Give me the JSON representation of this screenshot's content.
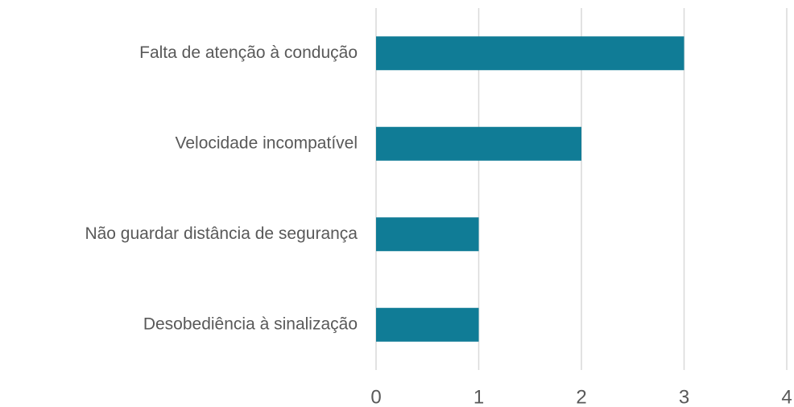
{
  "chart_data": {
    "type": "bar",
    "orientation": "horizontal",
    "categories": [
      "Falta de atenção à condução",
      "Velocidade incompatível",
      "Não guardar distância de segurança",
      "Desobediência à sinalização"
    ],
    "values": [
      3,
      2,
      1,
      1
    ],
    "color": "#107c96",
    "xlim": [
      0,
      4
    ],
    "xticks": [
      0,
      1,
      2,
      3,
      4
    ],
    "grid": true
  }
}
